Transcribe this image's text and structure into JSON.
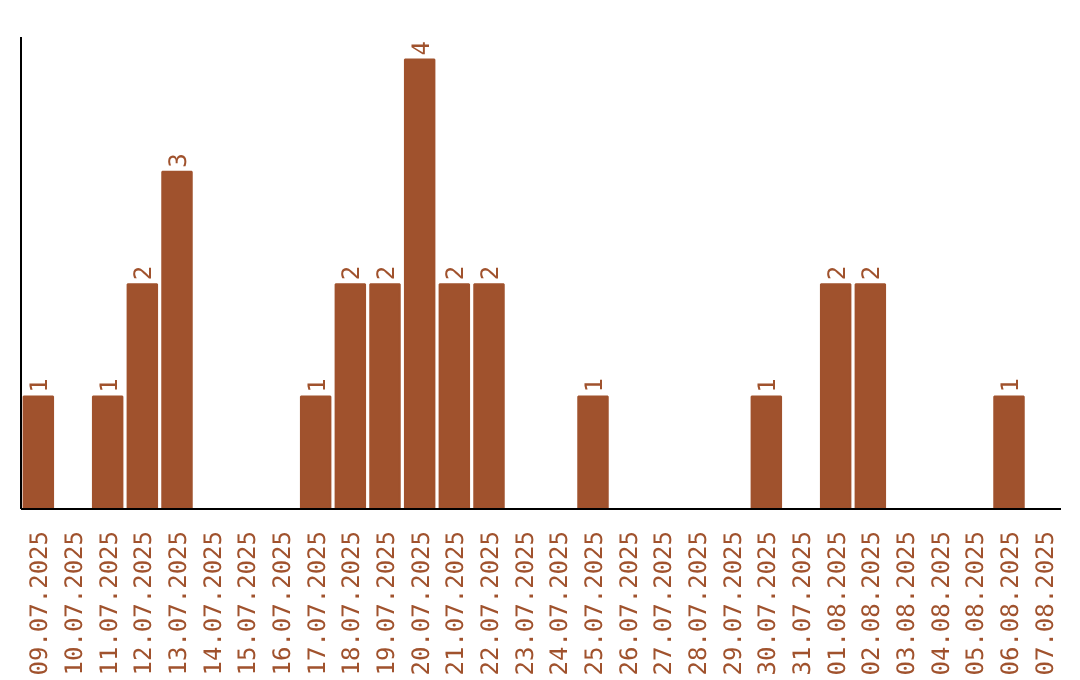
{
  "chart_data": {
    "type": "bar",
    "categories": [
      "09.07.2025",
      "10.07.2025",
      "11.07.2025",
      "12.07.2025",
      "13.07.2025",
      "14.07.2025",
      "15.07.2025",
      "16.07.2025",
      "17.07.2025",
      "18.07.2025",
      "19.07.2025",
      "20.07.2025",
      "21.07.2025",
      "22.07.2025",
      "23.07.2025",
      "24.07.2025",
      "25.07.2025",
      "26.07.2025",
      "27.07.2025",
      "28.07.2025",
      "29.07.2025",
      "30.07.2025",
      "31.07.2025",
      "01.08.2025",
      "02.08.2025",
      "03.08.2025",
      "04.08.2025",
      "05.08.2025",
      "06.08.2025",
      "07.08.2025"
    ],
    "values": [
      1,
      0,
      1,
      2,
      3,
      0,
      0,
      0,
      1,
      2,
      2,
      4,
      2,
      2,
      0,
      0,
      1,
      0,
      0,
      0,
      0,
      1,
      0,
      2,
      2,
      0,
      0,
      0,
      1,
      0
    ],
    "value_labels": [
      "1",
      null,
      "1",
      "2",
      "3",
      null,
      null,
      null,
      "1",
      "2",
      "2",
      "4",
      "2",
      "2",
      null,
      null,
      "1",
      null,
      null,
      null,
      null,
      "1",
      null,
      "2",
      "2",
      null,
      null,
      null,
      "1",
      null
    ],
    "color": "#a0522d",
    "ylim": [
      0,
      4.2
    ],
    "tick_labels": "x"
  }
}
